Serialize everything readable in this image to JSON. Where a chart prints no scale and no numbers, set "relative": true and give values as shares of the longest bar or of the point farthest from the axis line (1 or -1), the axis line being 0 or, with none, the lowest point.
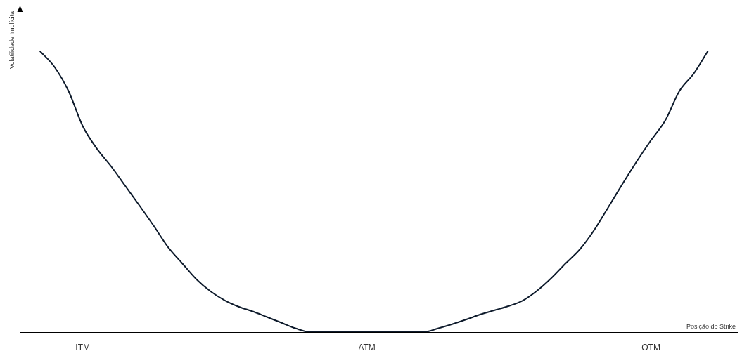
{
  "chart_data": {
    "type": "line",
    "relative": true,
    "xlabel": "Posição do Strike",
    "ylabel": "Volatilidade Implícita",
    "categories": [
      null,
      null,
      null,
      "ITM",
      null,
      null,
      null,
      null,
      null,
      null,
      null,
      null,
      null,
      null,
      null,
      null,
      null,
      null,
      null,
      null,
      null,
      null,
      null,
      "ATM",
      null,
      null,
      null,
      null,
      null,
      null,
      null,
      null,
      null,
      null,
      null,
      null,
      null,
      null,
      null,
      null,
      null,
      null,
      null,
      "OTM",
      null,
      null,
      null,
      null
    ],
    "series": [
      {
        "color": "#0d1a2b",
        "values": [
          1.0,
          0.945,
          0.858,
          0.733,
          0.653,
          0.59,
          0.52,
          0.45,
          0.378,
          0.303,
          0.245,
          0.188,
          0.145,
          0.113,
          0.09,
          0.073,
          0.053,
          0.033,
          0.013,
          0,
          0,
          0,
          0,
          0,
          0,
          0,
          0,
          0,
          0.013,
          0.028,
          0.045,
          0.063,
          0.078,
          0.093,
          0.113,
          0.148,
          0.193,
          0.245,
          0.295,
          0.363,
          0.445,
          0.528,
          0.608,
          0.683,
          0.753,
          0.858,
          0.92,
          1.0
        ]
      }
    ],
    "legend": false,
    "marker": "none",
    "line_style": "solid"
  }
}
